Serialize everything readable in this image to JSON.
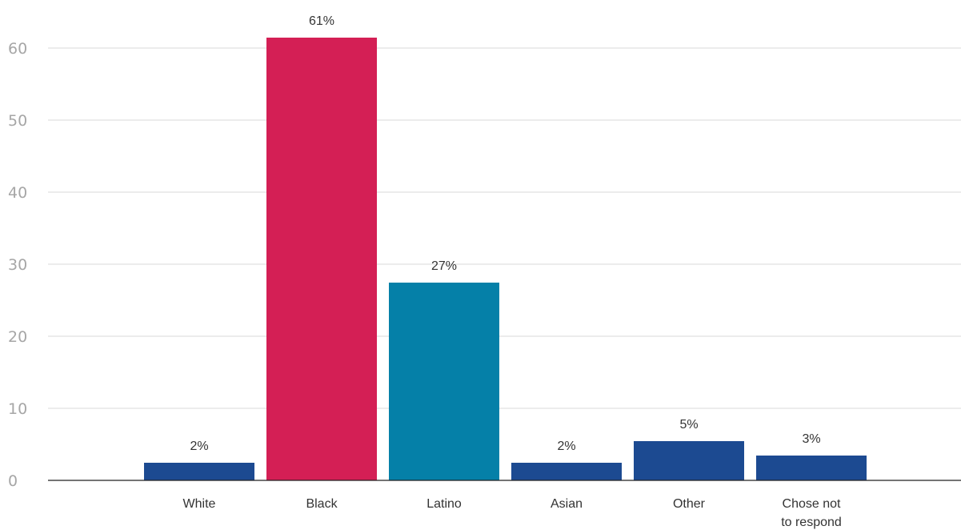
{
  "chart_data": {
    "type": "bar",
    "categories": [
      "White",
      "Black",
      "Latino",
      "Asian",
      "Other",
      "Chose not to respond"
    ],
    "category_label_lines": [
      [
        "White"
      ],
      [
        "Black"
      ],
      [
        "Latino"
      ],
      [
        "Asian"
      ],
      [
        "Other"
      ],
      [
        "Chose not",
        "to respond"
      ]
    ],
    "values": [
      2,
      61,
      27,
      2,
      5,
      3
    ],
    "data_labels": [
      "2%",
      "61%",
      "27%",
      "2%",
      "5%",
      "3%"
    ],
    "bar_colors": [
      "#1c4a91",
      "#d41f55",
      "#0580a8",
      "#1c4a91",
      "#1c4a91",
      "#1c4a91"
    ],
    "yticks": [
      0,
      10,
      20,
      30,
      40,
      50,
      60
    ],
    "ylim": [
      0,
      60
    ],
    "grid": true,
    "title": "",
    "xlabel": "",
    "ylabel": ""
  }
}
